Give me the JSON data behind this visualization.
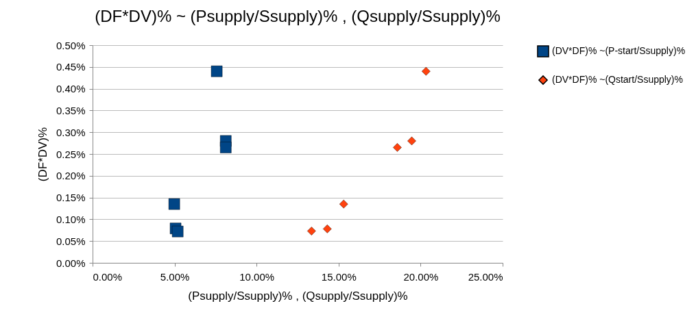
{
  "chart_data": {
    "type": "scatter",
    "title": "(DF*DV)% ~ (Psupply/Ssupply)% , (Qsupply/Ssupply)%",
    "xlabel": "(Psupply/Ssupply)% , (Qsupply/Ssupply)%",
    "ylabel": "(DF*DV)%",
    "series": [
      {
        "name": "(DV*DF)% ~(P-start/Ssupply)%",
        "color": "#004586",
        "marker": "square",
        "x": [
          7.57,
          8.12,
          8.12,
          4.98,
          5.06,
          5.19
        ],
        "values": [
          0.44,
          0.28,
          0.265,
          0.135,
          0.079,
          0.072
        ]
      },
      {
        "name": "(DV*DF)% ~(Qstart/Ssupply)%",
        "color": "#ff420e",
        "marker": "diamond",
        "x": [
          20.33,
          19.46,
          18.58,
          15.31,
          14.31,
          13.35
        ],
        "values": [
          0.44,
          0.28,
          0.265,
          0.135,
          0.078,
          0.073
        ]
      }
    ],
    "xlim": [
      0,
      25
    ],
    "xticks": [
      {
        "value": 0,
        "label": "0.00%"
      },
      {
        "value": 5,
        "label": "5.00%"
      },
      {
        "value": 10,
        "label": "10.00%"
      },
      {
        "value": 15,
        "label": "15.00%"
      },
      {
        "value": 20,
        "label": "20.00%"
      },
      {
        "value": 25,
        "label": "25.00%"
      }
    ],
    "ylim": [
      0,
      0.5
    ],
    "yticks": [
      {
        "value": 0,
        "label": "0.00%"
      },
      {
        "value": 0.05,
        "label": "0.05%"
      },
      {
        "value": 0.1,
        "label": "0.10%"
      },
      {
        "value": 0.15,
        "label": "0.15%"
      },
      {
        "value": 0.2,
        "label": "0.20%"
      },
      {
        "value": 0.25,
        "label": "0.25%"
      },
      {
        "value": 0.3,
        "label": "0.30%"
      },
      {
        "value": 0.35,
        "label": "0.35%"
      },
      {
        "value": 0.4,
        "label": "0.40%"
      },
      {
        "value": 0.45,
        "label": "0.45%"
      },
      {
        "value": 0.5,
        "label": "0.50%"
      }
    ],
    "grid": "y",
    "legend": "right"
  }
}
